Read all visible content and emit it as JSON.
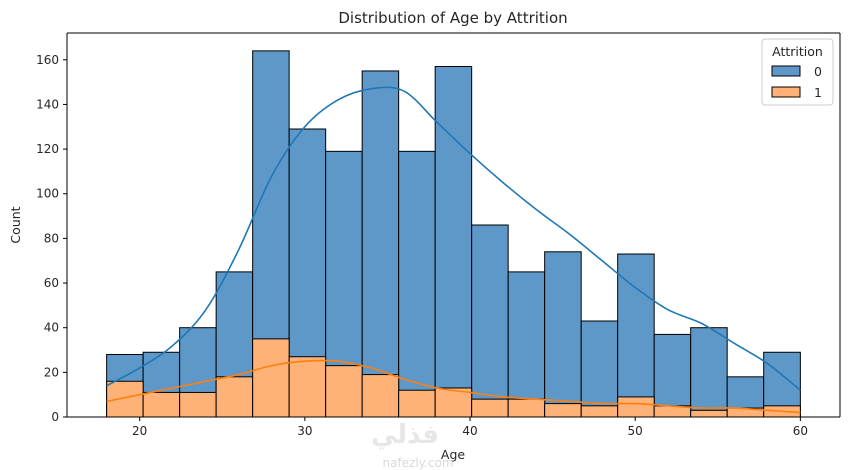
{
  "chart_data": {
    "type": "histogram",
    "title": "Distribution of Age by Attrition",
    "xlabel": "Age",
    "ylabel": "Count",
    "xlim": [
      15.6,
      62.4
    ],
    "ylim": [
      0,
      172
    ],
    "xticks": [
      20,
      30,
      40,
      50,
      60
    ],
    "yticks": [
      0,
      20,
      40,
      60,
      80,
      100,
      120,
      140,
      160
    ],
    "bin_edges": [
      18.0,
      20.21,
      22.42,
      24.63,
      26.84,
      29.05,
      31.26,
      33.47,
      35.68,
      37.89,
      40.1,
      42.31,
      44.52,
      46.73,
      48.94,
      51.15,
      53.36,
      55.57,
      57.78,
      60.0
    ],
    "stacked": false,
    "legend": {
      "title": "Attrition",
      "position": "top-right"
    },
    "series": [
      {
        "name": "0",
        "color": "#5e98c9",
        "line_color": "#1f77b4",
        "values": [
          28,
          29,
          40,
          65,
          164,
          129,
          119,
          155,
          119,
          157,
          86,
          65,
          74,
          43,
          73,
          37,
          40,
          18,
          29
        ],
        "kde": [
          [
            18,
            14
          ],
          [
            20,
            22
          ],
          [
            22,
            32
          ],
          [
            24,
            48
          ],
          [
            26,
            75
          ],
          [
            28,
            108
          ],
          [
            30,
            130
          ],
          [
            32,
            142
          ],
          [
            34,
            147
          ],
          [
            36,
            146
          ],
          [
            38,
            132
          ],
          [
            40,
            118
          ],
          [
            42,
            105
          ],
          [
            44,
            93
          ],
          [
            46,
            82
          ],
          [
            48,
            70
          ],
          [
            50,
            58
          ],
          [
            52,
            48
          ],
          [
            54,
            42
          ],
          [
            56,
            33
          ],
          [
            58,
            24
          ],
          [
            60,
            12
          ]
        ]
      },
      {
        "name": "1",
        "color": "#ffb278",
        "line_color": "#ff7f0e",
        "values": [
          16,
          11,
          11,
          18,
          35,
          27,
          23,
          19,
          12,
          13,
          8,
          8,
          6,
          5,
          9,
          5,
          3,
          4,
          5
        ],
        "kde": [
          [
            18,
            7
          ],
          [
            20,
            10
          ],
          [
            22,
            13
          ],
          [
            24,
            16
          ],
          [
            26,
            19
          ],
          [
            28,
            23
          ],
          [
            30,
            25
          ],
          [
            32,
            25
          ],
          [
            34,
            22
          ],
          [
            36,
            17
          ],
          [
            38,
            13
          ],
          [
            40,
            11
          ],
          [
            42,
            9
          ],
          [
            44,
            8
          ],
          [
            46,
            7
          ],
          [
            48,
            6
          ],
          [
            50,
            6
          ],
          [
            52,
            5
          ],
          [
            54,
            4
          ],
          [
            56,
            4
          ],
          [
            58,
            3
          ],
          [
            60,
            2
          ]
        ]
      }
    ]
  },
  "watermark": {
    "logo": "فذلي",
    "url": "nafezly.com"
  }
}
